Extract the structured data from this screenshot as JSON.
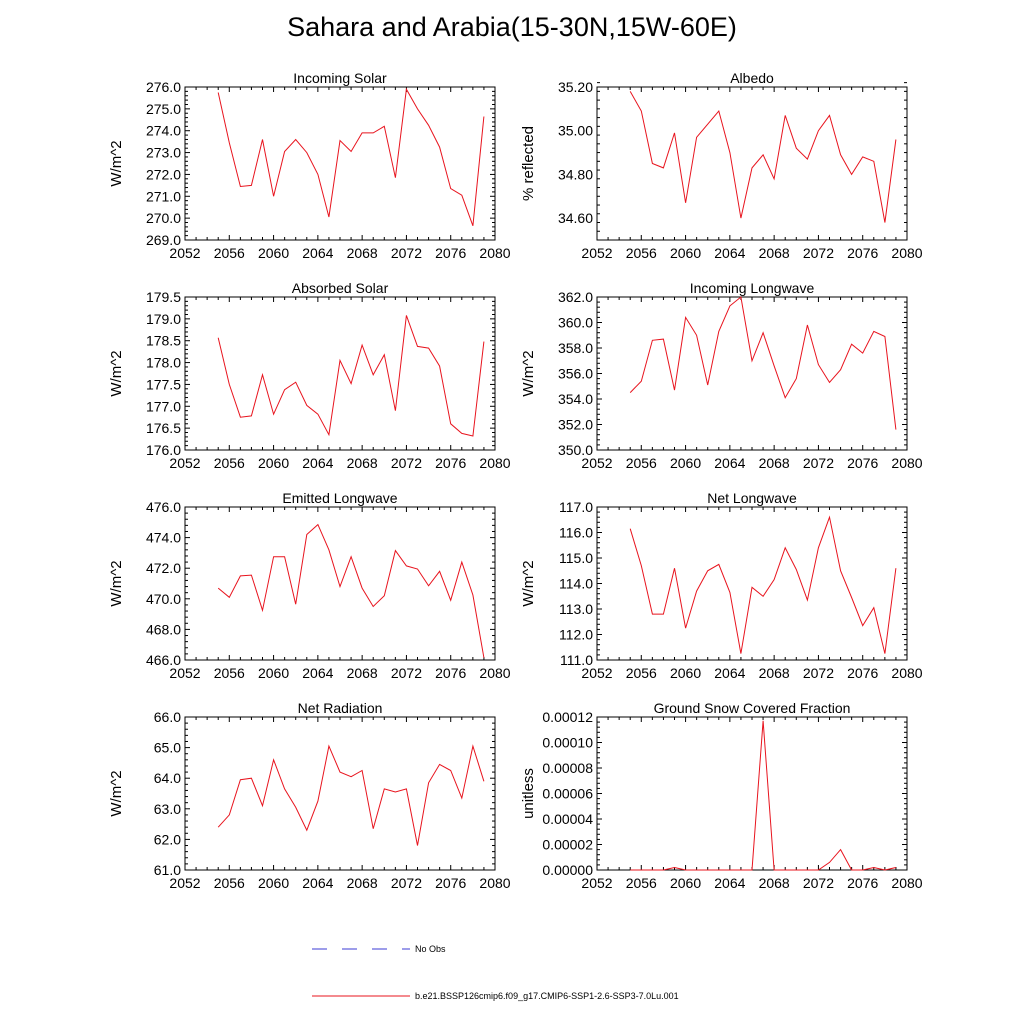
{
  "title": "Sahara and Arabia(15-30N,15W-60E)",
  "colors": {
    "series": "#e8141e",
    "obs": "#3b3bd6"
  },
  "legend": [
    {
      "label": "No Obs",
      "style": "dashed",
      "color": "#3b3bd6"
    },
    {
      "label": "b.e21.BSSP126cmip6.f09_g17.CMIP6-SSP1-2.6-SSP3-7.0Lu.001",
      "style": "solid",
      "color": "#e8141e"
    }
  ],
  "chart_data": [
    {
      "type": "line",
      "title": "Incoming Solar",
      "ylabel": "W/m^2",
      "xlim": [
        2052,
        2080
      ],
      "ylim": [
        269.0,
        276.0
      ],
      "xticks": [
        2052,
        2056,
        2060,
        2064,
        2068,
        2072,
        2076,
        2080
      ],
      "yticks": [
        "269.0",
        "270.0",
        "271.0",
        "272.0",
        "273.0",
        "274.0",
        "275.0",
        "276.0"
      ],
      "x": [
        2055,
        2056,
        2057,
        2058,
        2059,
        2060,
        2061,
        2062,
        2063,
        2064,
        2065,
        2066,
        2067,
        2068,
        2069,
        2070,
        2071,
        2072,
        2073,
        2074,
        2075,
        2076,
        2077,
        2078,
        2079
      ],
      "series": [
        {
          "values": [
            275.75,
            273.45,
            271.45,
            271.5,
            273.6,
            271.0,
            273.05,
            273.6,
            273.0,
            272.0,
            270.05,
            273.55,
            273.05,
            273.9,
            273.9,
            274.2,
            271.85,
            275.9,
            275.0,
            274.25,
            273.25,
            271.35,
            271.05,
            269.65,
            274.65
          ]
        }
      ]
    },
    {
      "type": "line",
      "title": "Albedo",
      "ylabel": "% reflected",
      "xlim": [
        2052,
        2080
      ],
      "ylim": [
        34.5,
        35.2
      ],
      "xticks": [
        2052,
        2056,
        2060,
        2064,
        2068,
        2072,
        2076,
        2080
      ],
      "yticks": [
        "34.60",
        "34.80",
        "35.00",
        "35.20"
      ],
      "x": [
        2055,
        2056,
        2057,
        2058,
        2059,
        2060,
        2061,
        2062,
        2063,
        2064,
        2065,
        2066,
        2067,
        2068,
        2069,
        2070,
        2071,
        2072,
        2073,
        2074,
        2075,
        2076,
        2077,
        2078,
        2079
      ],
      "series": [
        {
          "values": [
            35.18,
            35.09,
            34.85,
            34.83,
            34.99,
            34.67,
            34.97,
            35.03,
            35.09,
            34.9,
            34.6,
            34.83,
            34.89,
            34.78,
            35.07,
            34.92,
            34.87,
            35.0,
            35.07,
            34.89,
            34.8,
            34.88,
            34.86,
            34.58,
            34.96
          ]
        }
      ]
    },
    {
      "type": "line",
      "title": "Absorbed Solar",
      "ylabel": "W/m^2",
      "xlim": [
        2052,
        2080
      ],
      "ylim": [
        176.0,
        179.5
      ],
      "xticks": [
        2052,
        2056,
        2060,
        2064,
        2068,
        2072,
        2076,
        2080
      ],
      "yticks": [
        "176.0",
        "176.5",
        "177.0",
        "177.5",
        "178.0",
        "178.5",
        "179.0",
        "179.5"
      ],
      "x": [
        2055,
        2056,
        2057,
        2058,
        2059,
        2060,
        2061,
        2062,
        2063,
        2064,
        2065,
        2066,
        2067,
        2068,
        2069,
        2070,
        2071,
        2072,
        2073,
        2074,
        2075,
        2076,
        2077,
        2078,
        2079
      ],
      "series": [
        {
          "values": [
            178.57,
            177.5,
            176.75,
            176.78,
            177.72,
            176.82,
            177.38,
            177.55,
            177.02,
            176.82,
            176.35,
            178.05,
            177.52,
            178.4,
            177.72,
            178.18,
            176.9,
            179.08,
            178.37,
            178.33,
            177.92,
            176.6,
            176.38,
            176.32,
            178.48
          ]
        }
      ]
    },
    {
      "type": "line",
      "title": "Incoming Longwave",
      "ylabel": "W/m^2",
      "xlim": [
        2052,
        2080
      ],
      "ylim": [
        350.0,
        362.0
      ],
      "xticks": [
        2052,
        2056,
        2060,
        2064,
        2068,
        2072,
        2076,
        2080
      ],
      "yticks": [
        "350.0",
        "352.0",
        "354.0",
        "356.0",
        "358.0",
        "360.0",
        "362.0"
      ],
      "x": [
        2055,
        2056,
        2057,
        2058,
        2059,
        2060,
        2061,
        2062,
        2063,
        2064,
        2065,
        2066,
        2067,
        2068,
        2069,
        2070,
        2071,
        2072,
        2073,
        2074,
        2075,
        2076,
        2077,
        2078,
        2079
      ],
      "series": [
        {
          "values": [
            354.5,
            355.4,
            358.6,
            358.7,
            354.7,
            360.4,
            359.0,
            355.1,
            359.3,
            361.3,
            362.0,
            357.0,
            359.2,
            356.6,
            354.1,
            355.6,
            359.8,
            356.7,
            355.3,
            356.3,
            358.3,
            357.6,
            359.3,
            358.9,
            351.6
          ]
        }
      ]
    },
    {
      "type": "line",
      "title": "Emitted Longwave",
      "ylabel": "W/m^2",
      "xlim": [
        2052,
        2080
      ],
      "ylim": [
        466.0,
        476.0
      ],
      "xticks": [
        2052,
        2056,
        2060,
        2064,
        2068,
        2072,
        2076,
        2080
      ],
      "yticks": [
        "466.0",
        "468.0",
        "470.0",
        "472.0",
        "474.0",
        "476.0"
      ],
      "x": [
        2055,
        2056,
        2057,
        2058,
        2059,
        2060,
        2061,
        2062,
        2063,
        2064,
        2065,
        2066,
        2067,
        2068,
        2069,
        2070,
        2071,
        2072,
        2073,
        2074,
        2075,
        2076,
        2077,
        2078,
        2079
      ],
      "series": [
        {
          "values": [
            470.7,
            470.1,
            471.5,
            471.55,
            469.25,
            472.75,
            472.75,
            469.65,
            474.2,
            474.85,
            473.2,
            470.8,
            472.75,
            470.7,
            469.5,
            470.2,
            473.15,
            472.15,
            471.95,
            470.85,
            471.8,
            469.9,
            472.4,
            470.25,
            466.15
          ]
        }
      ]
    },
    {
      "type": "line",
      "title": "Net Longwave",
      "ylabel": "W/m^2",
      "xlim": [
        2052,
        2080
      ],
      "ylim": [
        111.0,
        117.0
      ],
      "xticks": [
        2052,
        2056,
        2060,
        2064,
        2068,
        2072,
        2076,
        2080
      ],
      "yticks": [
        "111.0",
        "112.0",
        "113.0",
        "114.0",
        "115.0",
        "116.0",
        "117.0"
      ],
      "x": [
        2055,
        2056,
        2057,
        2058,
        2059,
        2060,
        2061,
        2062,
        2063,
        2064,
        2065,
        2066,
        2067,
        2068,
        2069,
        2070,
        2071,
        2072,
        2073,
        2074,
        2075,
        2076,
        2077,
        2078,
        2079
      ],
      "series": [
        {
          "values": [
            116.15,
            114.7,
            112.8,
            112.8,
            114.6,
            112.25,
            113.7,
            114.5,
            114.75,
            113.65,
            111.25,
            113.85,
            113.5,
            114.15,
            115.4,
            114.55,
            113.35,
            115.4,
            116.6,
            114.5,
            113.45,
            112.35,
            113.05,
            111.25,
            114.6
          ]
        }
      ]
    },
    {
      "type": "line",
      "title": "Net Radiation",
      "ylabel": "W/m^2",
      "xlim": [
        2052,
        2080
      ],
      "ylim": [
        61.0,
        66.0
      ],
      "xticks": [
        2052,
        2056,
        2060,
        2064,
        2068,
        2072,
        2076,
        2080
      ],
      "yticks": [
        "61.0",
        "62.0",
        "63.0",
        "64.0",
        "65.0",
        "66.0"
      ],
      "x": [
        2055,
        2056,
        2057,
        2058,
        2059,
        2060,
        2061,
        2062,
        2063,
        2064,
        2065,
        2066,
        2067,
        2068,
        2069,
        2070,
        2071,
        2072,
        2073,
        2074,
        2075,
        2076,
        2077,
        2078,
        2079
      ],
      "series": [
        {
          "values": [
            62.4,
            62.8,
            63.95,
            64.0,
            63.1,
            64.6,
            63.65,
            63.05,
            62.3,
            63.25,
            65.05,
            64.2,
            64.05,
            64.25,
            62.35,
            63.65,
            63.55,
            63.65,
            61.8,
            63.85,
            64.45,
            64.25,
            63.35,
            65.05,
            63.9
          ]
        }
      ]
    },
    {
      "type": "line",
      "title": "Ground Snow Covered Fraction",
      "ylabel": "unitless",
      "xlim": [
        2052,
        2080
      ],
      "ylim": [
        0.0,
        0.00012
      ],
      "xticks": [
        2052,
        2056,
        2060,
        2064,
        2068,
        2072,
        2076,
        2080
      ],
      "yticks": [
        "0.00000",
        "0.00002",
        "0.00004",
        "0.00006",
        "0.00008",
        "0.00010",
        "0.00012"
      ],
      "x": [
        2055,
        2056,
        2057,
        2058,
        2059,
        2060,
        2061,
        2062,
        2063,
        2064,
        2065,
        2066,
        2067,
        2068,
        2069,
        2070,
        2071,
        2072,
        2073,
        2074,
        2075,
        2076,
        2077,
        2078,
        2079
      ],
      "series": [
        {
          "values": [
            0.0,
            0.0,
            0.0,
            0.0,
            2e-06,
            0.0,
            0.0,
            0.0,
            0.0,
            0.0,
            0.0,
            0.0,
            0.000117,
            0.0,
            0.0,
            0.0,
            0.0,
            0.0,
            6e-06,
            1.6e-05,
            0.0,
            0.0,
            2e-06,
            0.0,
            2e-06
          ]
        }
      ]
    }
  ]
}
